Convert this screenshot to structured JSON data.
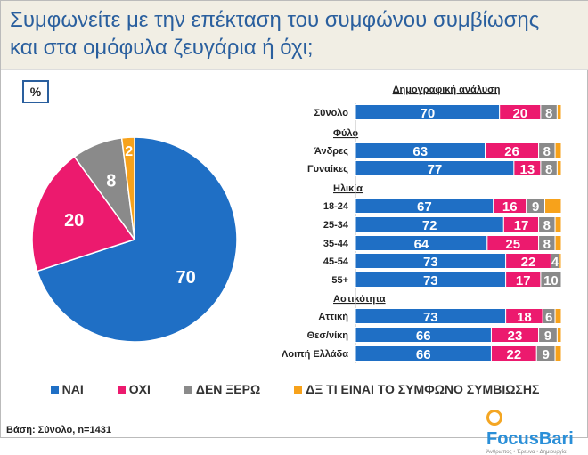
{
  "title": [
    "Συμφωνείτε με την επέκταση του συμφώνου συμβίωσης",
    "και στα ομόφυλα ζευγάρια ή όχι;"
  ],
  "percent_label": "%",
  "base": "Βάση: Σύνολο, n=1431",
  "logo": {
    "name": "FocusBari",
    "tagline": "Άνθρωπος • Έρευνα • Δημιουργία"
  },
  "colors": {
    "yes": "#1f6fc5",
    "no": "#ec1a6e",
    "dk": "#8a8a8a",
    "unaware": "#f7a21b"
  },
  "chart_data": [
    {
      "type": "pie",
      "series": [
        {
          "name": "ΝΑΙ",
          "value": 70
        },
        {
          "name": "ΟΧΙ",
          "value": 20
        },
        {
          "name": "ΔΕΝ ΞΕΡΩ",
          "value": 8
        },
        {
          "name": "ΔΞ ΤΙ ΕΙΝΑΙ ΤΟ ΣΥΜΦΩΝΟ ΣΥΜΒΙΩΣΗΣ",
          "value": 2
        }
      ],
      "legend": "bottom"
    },
    {
      "type": "bar",
      "stacked": true,
      "orientation": "horizontal",
      "title": "Δημογραφική ανάλυση",
      "groups": [
        {
          "label": "",
          "rows": [
            0
          ]
        },
        {
          "label": "Φύλο",
          "rows": [
            1,
            2
          ]
        },
        {
          "label": "Ηλικία",
          "rows": [
            3,
            4,
            5,
            6,
            7
          ]
        },
        {
          "label": "Αστικότητα",
          "rows": [
            8,
            9,
            10
          ]
        }
      ],
      "categories": [
        "Σύνολο",
        "Άνδρες",
        "Γυναίκες",
        "18-24",
        "25-34",
        "35-44",
        "45-54",
        "55+",
        "Αττική",
        "Θεσ/νίκη",
        "Λοιπή Ελλάδα"
      ],
      "series": [
        {
          "name": "ΝΑΙ",
          "values": [
            70,
            63,
            77,
            67,
            72,
            64,
            73,
            73,
            73,
            66,
            66
          ]
        },
        {
          "name": "ΟΧΙ",
          "values": [
            20,
            26,
            13,
            16,
            17,
            25,
            22,
            17,
            18,
            23,
            22
          ]
        },
        {
          "name": "ΔΕΝ ΞΕΡΩ",
          "values": [
            8,
            8,
            8,
            9,
            8,
            8,
            4,
            10,
            6,
            9,
            9
          ]
        },
        {
          "name": "ΔΞ ΤΙ ΕΙΝΑΙ ΤΟ ΣΥΜΦΩΝΟ ΣΥΜΒΙΩΣΗΣ",
          "values": [
            2,
            3,
            2,
            8,
            3,
            3,
            1,
            0,
            3,
            2,
            3
          ]
        }
      ],
      "xlim": [
        0,
        100
      ],
      "legend": "bottom"
    }
  ]
}
